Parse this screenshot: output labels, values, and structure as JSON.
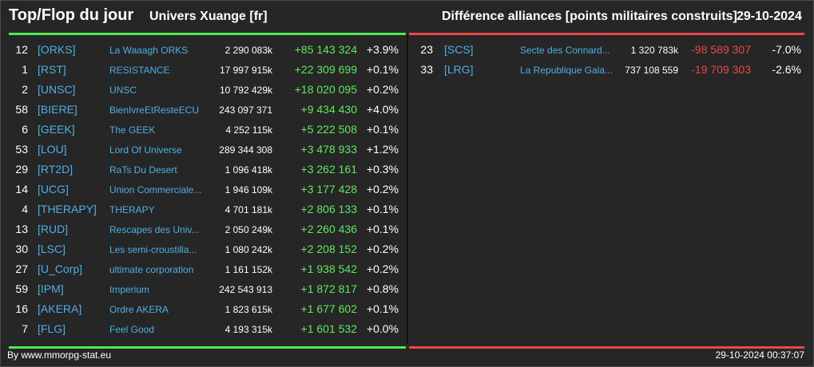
{
  "header": {
    "title": "Top/Flop du jour",
    "universe": "Univers Xuange [fr]",
    "subtitle": "Différence alliances [points militaires construits]",
    "date": "29-10-2024"
  },
  "colors": {
    "positive": "#5ee85e",
    "negative": "#e8484a",
    "link": "#4eaee6"
  },
  "top": [
    {
      "rank": "12",
      "tag": "[ORKS]",
      "name": "La Waaagh ORKS",
      "points": "2 290 083k",
      "diff": "+85 143 324",
      "pct": "+3.9%"
    },
    {
      "rank": "1",
      "tag": "[RST]",
      "name": "RESISTANCE",
      "points": "17 997 915k",
      "diff": "+22 309 699",
      "pct": "+0.1%"
    },
    {
      "rank": "2",
      "tag": "[UNSC]",
      "name": "UNSC",
      "points": "10 792 429k",
      "diff": "+18 020 095",
      "pct": "+0.2%"
    },
    {
      "rank": "58",
      "tag": "[BIERE]",
      "name": "BienIvreEtResteECU",
      "points": "243 097 371",
      "diff": "+9 434 430",
      "pct": "+4.0%"
    },
    {
      "rank": "6",
      "tag": "[GEEK]",
      "name": "The GEEK",
      "points": "4 252 115k",
      "diff": "+5 222 508",
      "pct": "+0.1%"
    },
    {
      "rank": "53",
      "tag": "[LOU]",
      "name": "Lord Of Universe",
      "points": "289 344 308",
      "diff": "+3 478 933",
      "pct": "+1.2%"
    },
    {
      "rank": "29",
      "tag": "[RT2D]",
      "name": "RaTs Du Desert",
      "points": "1 096 418k",
      "diff": "+3 262 161",
      "pct": "+0.3%"
    },
    {
      "rank": "14",
      "tag": "[UCG]",
      "name": "Union Commerciale...",
      "points": "1 946 109k",
      "diff": "+3 177 428",
      "pct": "+0.2%"
    },
    {
      "rank": "4",
      "tag": "[THERAPY]",
      "name": "THERAPY",
      "points": "4 701 181k",
      "diff": "+2 806 133",
      "pct": "+0.1%"
    },
    {
      "rank": "13",
      "tag": "[RUD]",
      "name": "Rescapes des Univ...",
      "points": "2 050 249k",
      "diff": "+2 260 436",
      "pct": "+0.1%"
    },
    {
      "rank": "30",
      "tag": "[LSC]",
      "name": "Les semi-croustilla...",
      "points": "1 080 242k",
      "diff": "+2 208 152",
      "pct": "+0.2%"
    },
    {
      "rank": "27",
      "tag": "[U_Corp]",
      "name": "ultimate corporation",
      "points": "1 161 152k",
      "diff": "+1 938 542",
      "pct": "+0.2%"
    },
    {
      "rank": "59",
      "tag": "[IPM]",
      "name": "Imperium",
      "points": "242 543 913",
      "diff": "+1 872 817",
      "pct": "+0.8%"
    },
    {
      "rank": "16",
      "tag": "[AKERA]",
      "name": "Ordre AKERA",
      "points": "1 823 615k",
      "diff": "+1 677 602",
      "pct": "+0.1%"
    },
    {
      "rank": "7",
      "tag": "[FLG]",
      "name": "Feel Good",
      "points": "4 193 315k",
      "diff": "+1 601 532",
      "pct": "+0.0%"
    }
  ],
  "flop": [
    {
      "rank": "23",
      "tag": "[SCS]",
      "name": "Secte des Connard...",
      "points": "1 320 783k",
      "diff": "-98 589 307",
      "pct": "-7.0%"
    },
    {
      "rank": "33",
      "tag": "[LRG]",
      "name": "La Republique Gala...",
      "points": "737 108 559",
      "diff": "-19 709 303",
      "pct": "-2.6%"
    }
  ],
  "footer": {
    "source": "By www.mmorpg-stat.eu",
    "timestamp": "29-10-2024 00:37:07"
  }
}
